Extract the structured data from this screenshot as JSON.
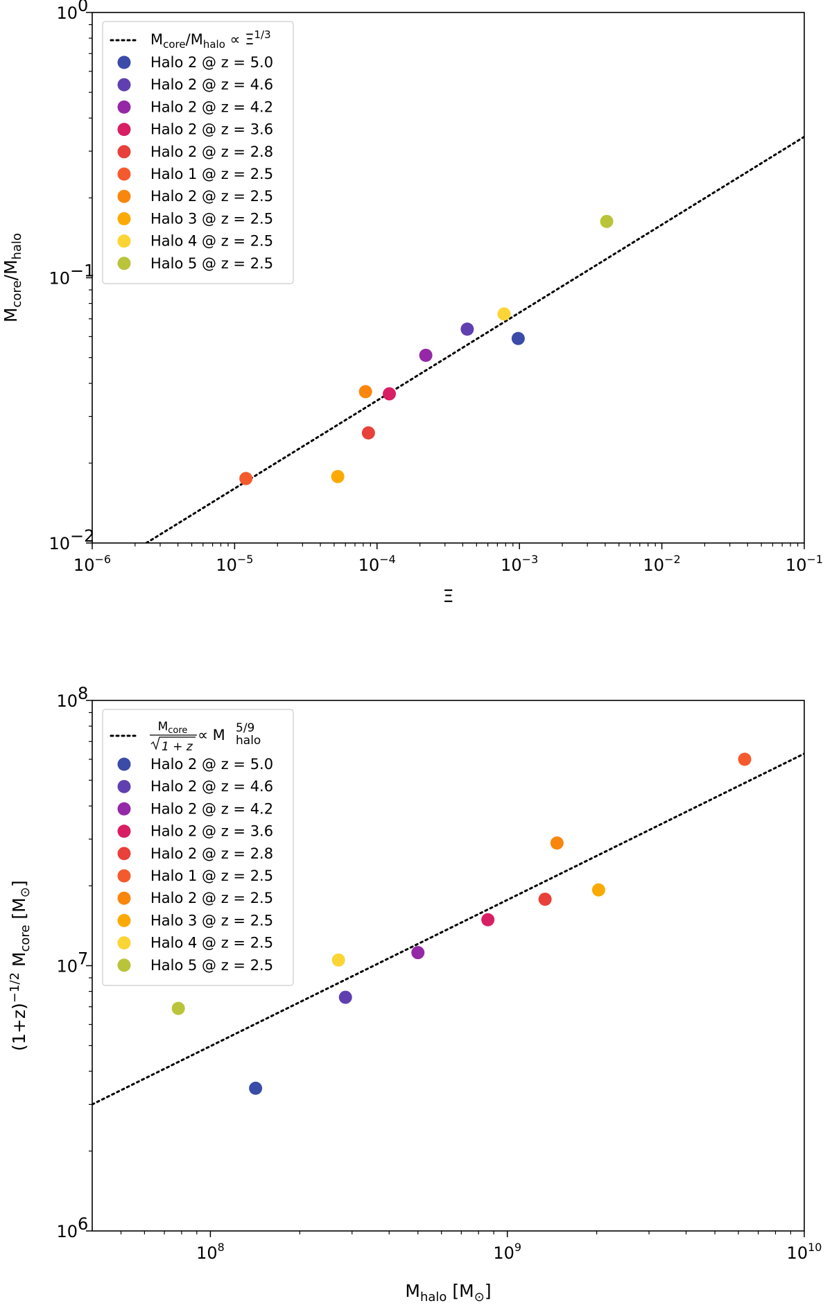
{
  "chart_data": [
    {
      "type": "scatter",
      "title": "",
      "xscale": "log",
      "yscale": "log",
      "xlim": [
        1e-06,
        0.1
      ],
      "ylim": [
        0.01,
        1
      ],
      "xlabel": "Ξ",
      "ylabel": {
        "main": "M",
        "sub1": "core",
        "slash": "/M",
        "sub2": "halo"
      },
      "x_ticks": [
        {
          "base": "10",
          "exp": "−6"
        },
        {
          "base": "10",
          "exp": "−5"
        },
        {
          "base": "10",
          "exp": "−4"
        },
        {
          "base": "10",
          "exp": "−3"
        },
        {
          "base": "10",
          "exp": "−2"
        },
        {
          "base": "10",
          "exp": "−1"
        }
      ],
      "y_ticks": [
        {
          "base": "10",
          "exp": "−2"
        },
        {
          "base": "10",
          "exp": "−1"
        },
        {
          "base": "10",
          "exp": "0"
        }
      ],
      "fit_line": {
        "label": {
          "m1": "M",
          "s1": "core",
          "m2": "/M",
          "s2": "halo",
          "m3": " ∝ Ξ",
          "sup": "1/3"
        },
        "style": "dotted",
        "color": "#000000",
        "from": [
          2.4e-06,
          0.01
        ],
        "to": [
          0.1,
          0.34
        ]
      },
      "legend_position": "upper-left",
      "series": [
        {
          "name": "Halo 2 @ z = 5.0",
          "color": "#3B4BA8",
          "x": 0.00098,
          "y": 0.059
        },
        {
          "name": "Halo 2 @ z = 4.6",
          "color": "#6040B0",
          "x": 0.00043,
          "y": 0.064
        },
        {
          "name": "Halo 2 @ z = 4.2",
          "color": "#9428A6",
          "x": 0.00022,
          "y": 0.051
        },
        {
          "name": "Halo 2 @ z = 3.6",
          "color": "#D81F63",
          "x": 0.000122,
          "y": 0.0365
        },
        {
          "name": "Halo 2 @ z = 2.8",
          "color": "#E8403A",
          "x": 8.7e-05,
          "y": 0.026
        },
        {
          "name": "Halo 1 @ z = 2.5",
          "color": "#F45A2D",
          "x": 1.2e-05,
          "y": 0.0175
        },
        {
          "name": "Halo 2 @ z = 2.5",
          "color": "#F9860D",
          "x": 8.3e-05,
          "y": 0.0372
        },
        {
          "name": "Halo 3 @ z = 2.5",
          "color": "#FBAA05",
          "x": 5.3e-05,
          "y": 0.0178
        },
        {
          "name": "Halo 4 @ z = 2.5",
          "color": "#FBD536",
          "x": 0.00078,
          "y": 0.073
        },
        {
          "name": "Halo 5 @ z = 2.5",
          "color": "#B9C43A",
          "x": 0.0041,
          "y": 0.163
        }
      ]
    },
    {
      "type": "scatter",
      "title": "",
      "xscale": "log",
      "yscale": "log",
      "xlim": [
        40000000.0,
        10000000000.0
      ],
      "ylim": [
        1000000.0,
        100000000.0
      ],
      "xlabel": {
        "main": "M",
        "sub": "halo",
        "rest": " [M",
        "sun": "⊙",
        "end": "]"
      },
      "ylabel": {
        "pre": "(1+z)",
        "sup": "−1/2",
        "mid": " M",
        "sub": "core",
        "rest": " [M",
        "sun": "⊙",
        "end": "]"
      },
      "x_ticks": [
        {
          "base": "10",
          "exp": "8"
        },
        {
          "base": "10",
          "exp": "9"
        },
        {
          "base": "10",
          "exp": "10"
        }
      ],
      "y_ticks": [
        {
          "base": "10",
          "exp": "6"
        },
        {
          "base": "10",
          "exp": "7"
        },
        {
          "base": "10",
          "exp": "8"
        }
      ],
      "fit_line": {
        "label": {
          "num_m": "M",
          "num_s": "core",
          "den": "1 + z",
          "rel": " ∝ M",
          "sup": "5/9",
          "sub": "halo"
        },
        "style": "dotted",
        "color": "#000000",
        "from": [
          40000000.0,
          3000000.0
        ],
        "to": [
          10000000000.0,
          63000000.0
        ]
      },
      "legend_position": "upper-left",
      "series": [
        {
          "name": "Halo 2 @ z = 5.0",
          "color": "#3B4BA8",
          "x": 142000000.0,
          "y": 3450000.0
        },
        {
          "name": "Halo 2 @ z = 4.6",
          "color": "#6040B0",
          "x": 285000000.0,
          "y": 7600000.0
        },
        {
          "name": "Halo 2 @ z = 4.2",
          "color": "#9428A6",
          "x": 500000000.0,
          "y": 11200000.0
        },
        {
          "name": "Halo 2 @ z = 3.6",
          "color": "#D81F63",
          "x": 860000000.0,
          "y": 14900000.0
        },
        {
          "name": "Halo 2 @ z = 2.8",
          "color": "#E8403A",
          "x": 1340000000.0,
          "y": 17800000.0
        },
        {
          "name": "Halo 1 @ z = 2.5",
          "color": "#F45A2D",
          "x": 6300000000.0,
          "y": 60000000.0
        },
        {
          "name": "Halo 2 @ z = 2.5",
          "color": "#F9860D",
          "x": 1470000000.0,
          "y": 29000000.0
        },
        {
          "name": "Halo 3 @ z = 2.5",
          "color": "#FBAA05",
          "x": 2030000000.0,
          "y": 19300000.0
        },
        {
          "name": "Halo 4 @ z = 2.5",
          "color": "#FBD536",
          "x": 270000000.0,
          "y": 10500000.0
        },
        {
          "name": "Halo 5 @ z = 2.5",
          "color": "#B9C43A",
          "x": 78000000.0,
          "y": 6900000.0
        }
      ]
    }
  ]
}
